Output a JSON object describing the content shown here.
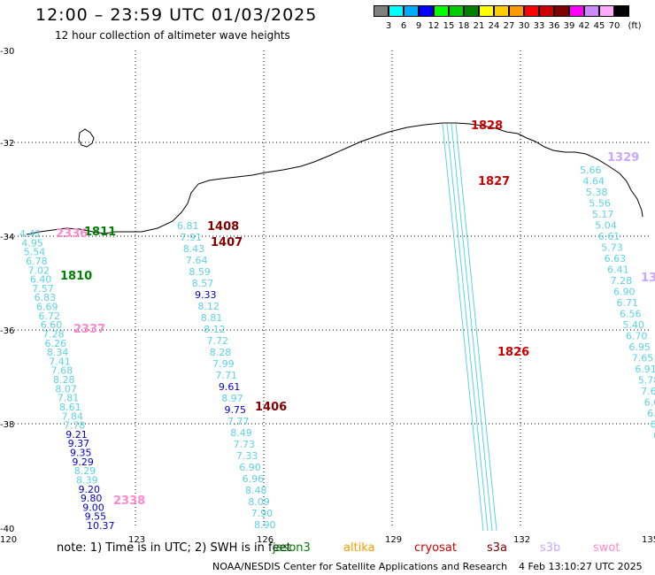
{
  "header": {
    "title": "12:00 – 23:59 UTC 01/03/2025",
    "subtitle": "12 hour collection of altimeter wave heights"
  },
  "colorbar": {
    "labels": [
      "3",
      "6",
      "9",
      "12",
      "15",
      "18",
      "21",
      "24",
      "27",
      "30",
      "33",
      "36",
      "39",
      "42",
      "45",
      "70"
    ],
    "unit": "(ft)",
    "colors": [
      "#808080",
      "#00ffff",
      "#00aaff",
      "#0000ff",
      "#00ff00",
      "#00cc00",
      "#008000",
      "#ffff00",
      "#ffcc00",
      "#ff9900",
      "#ff0000",
      "#cc0000",
      "#800000",
      "#ff00ff",
      "#cc88ff",
      "#ffaaff",
      "#000000"
    ]
  },
  "axes": {
    "lat_labels": [
      "-30",
      "-32",
      "-34",
      "-36",
      "-38",
      "-40"
    ],
    "lon_labels": [
      "120",
      "123",
      "126",
      "129",
      "132",
      "135"
    ]
  },
  "tracks": [
    {
      "id": "t1810",
      "color": "#5bd3e3",
      "values": [
        "4.41",
        "4.95",
        "5.54",
        "6.78",
        "7.02",
        "6.40",
        "7.57",
        "6.83",
        "6.69",
        "6.72",
        "6.60",
        "7.28",
        "6.26",
        "8.34",
        "7.41",
        "7.68",
        "8.28",
        "8.07",
        "7.81",
        "8.61",
        "7.84",
        "7.78",
        "9.21",
        "9.37",
        "9.35",
        "9.29",
        "8.29",
        "8.39",
        "9.20",
        "9.80",
        "9.00",
        "9.55",
        "10.37"
      ]
    },
    {
      "id": "t1408",
      "color": "#5bd3e3",
      "values": [
        "6.81",
        "7.91",
        "8.43",
        "7.64",
        "8.59",
        "8.57",
        "9.33",
        "8.12",
        "8.81",
        "8.12",
        "7.72",
        "8.28",
        "7.99",
        "7.71",
        "9.61",
        "8.97",
        "9.75",
        "7.77",
        "8.49",
        "7.73",
        "7.33",
        "6.90",
        "6.96",
        "8.48",
        "8.09",
        "7.90",
        "8.90"
      ]
    },
    {
      "id": "t1327",
      "color": "#5bd3e3",
      "values": [
        "5.66",
        "4.64",
        "5.38",
        "5.56",
        "5.17",
        "5.04",
        "6.61",
        "5.73",
        "6.63",
        "6.41",
        "7.28",
        "6.90",
        "6.71",
        "6.56",
        "5.40",
        "6.70",
        "6.95",
        "7.65",
        "6.91",
        "5.78",
        "7.6",
        "6.6",
        "6.8",
        "6.5",
        "6."
      ]
    }
  ],
  "time_labels": [
    {
      "text": "1811",
      "color": "#008000"
    },
    {
      "text": "2336",
      "color": "#ff88cc"
    },
    {
      "text": "1810",
      "color": "#008000"
    },
    {
      "text": "2337",
      "color": "#ff88cc"
    },
    {
      "text": "2338",
      "color": "#ff88cc"
    },
    {
      "text": "1408",
      "color": "#800000"
    },
    {
      "text": "1407",
      "color": "#800000"
    },
    {
      "text": "1406",
      "color": "#800000"
    },
    {
      "text": "1828",
      "color": "#cc0000"
    },
    {
      "text": "1827",
      "color": "#cc0000"
    },
    {
      "text": "1826",
      "color": "#cc0000"
    },
    {
      "text": "1329",
      "color": "#c8a8ff"
    },
    {
      "text": "13",
      "color": "#c8a8ff"
    }
  ],
  "footer": {
    "note": "note: 1) Time is in UTC; 2) SWH is in feet",
    "missions": [
      {
        "name": "jason3",
        "color": "#008000"
      },
      {
        "name": "altika",
        "color": "#ff9900"
      },
      {
        "name": "cryosat",
        "color": "#cc0000"
      },
      {
        "name": "s3a",
        "color": "#800000"
      },
      {
        "name": "s3b",
        "color": "#c8a8ff"
      },
      {
        "name": "swot",
        "color": "#ff88cc"
      }
    ],
    "credit": "NOAA/NESDIS Center for Satellite Applications and Research",
    "timestamp": "4 Feb 13:10:27 UTC 2025"
  }
}
